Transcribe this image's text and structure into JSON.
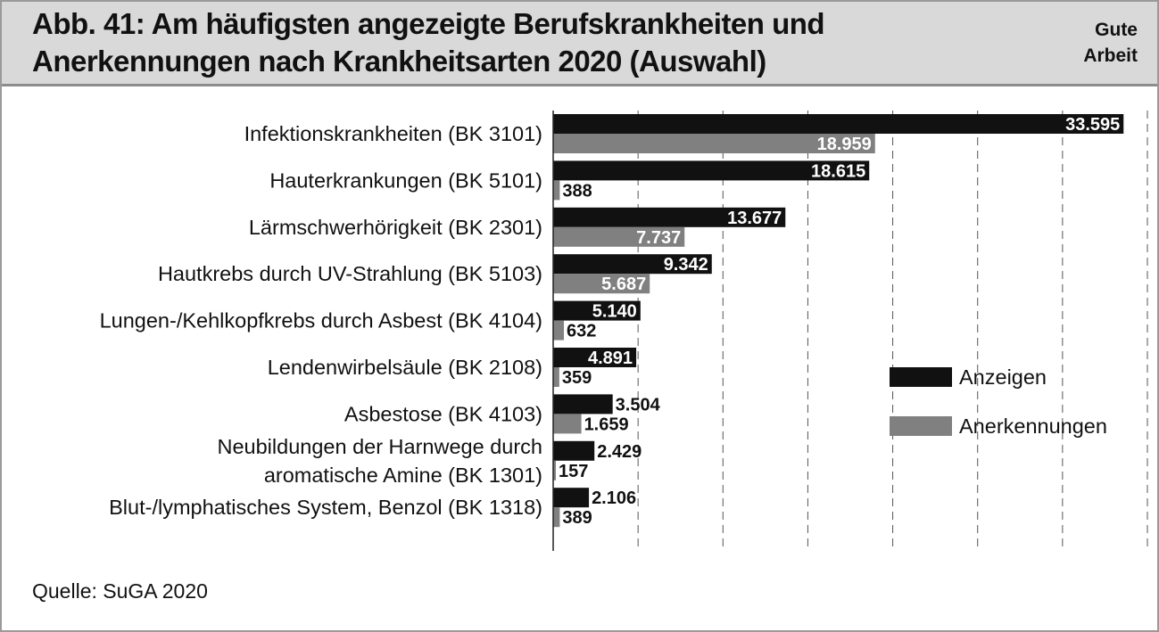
{
  "header": {
    "title_line1": "Abb. 41: Am häufigsten angezeigte Berufskrankheiten und",
    "title_line2": "Anerkennungen nach Krankheitsarten 2020 (Auswahl)",
    "brand_line1": "Gute",
    "brand_line2": "Arbeit"
  },
  "source": "Quelle: SuGA 2020",
  "colors": {
    "anzeigen": "#111111",
    "anerkennungen": "#808080",
    "header_bg": "#d9d9d9"
  },
  "chart_data": {
    "type": "bar",
    "orientation": "horizontal",
    "categories": [
      [
        "Infektionskrankheiten (BK 3101)"
      ],
      [
        "Hauterkrankungen (BK 5101)"
      ],
      [
        "Lärmschwerhörigkeit (BK 2301)"
      ],
      [
        "Hautkrebs durch UV-Strahlung (BK 5103)"
      ],
      [
        "Lungen-/Kehlkopfkrebs durch Asbest (BK 4104)"
      ],
      [
        "Lendenwirbelsäule (BK 2108)"
      ],
      [
        "Asbestose (BK 4103)"
      ],
      [
        "Neubildungen der Harnwege durch",
        "aromatische Amine (BK 1301)"
      ],
      [
        "Blut-/lymphatisches System, Benzol (BK 1318)"
      ]
    ],
    "series": [
      {
        "name": "Anzeigen",
        "values": [
          33595,
          18615,
          13677,
          9342,
          5140,
          4891,
          3504,
          2429,
          2106
        ],
        "labels": [
          "33.595",
          "18.615",
          "13.677",
          "9.342",
          "5.140",
          "4.891",
          "3.504",
          "2.429",
          "2.106"
        ]
      },
      {
        "name": "Anerkennungen",
        "values": [
          18959,
          388,
          7737,
          5687,
          632,
          359,
          1659,
          157,
          389
        ],
        "labels": [
          "18.959",
          "388",
          "7.737",
          "5.687",
          "632",
          "359",
          "1.659",
          "157",
          "389"
        ]
      }
    ],
    "xlim": [
      0,
      35000
    ],
    "grid": "vertical dashed",
    "legend_position": "right"
  }
}
